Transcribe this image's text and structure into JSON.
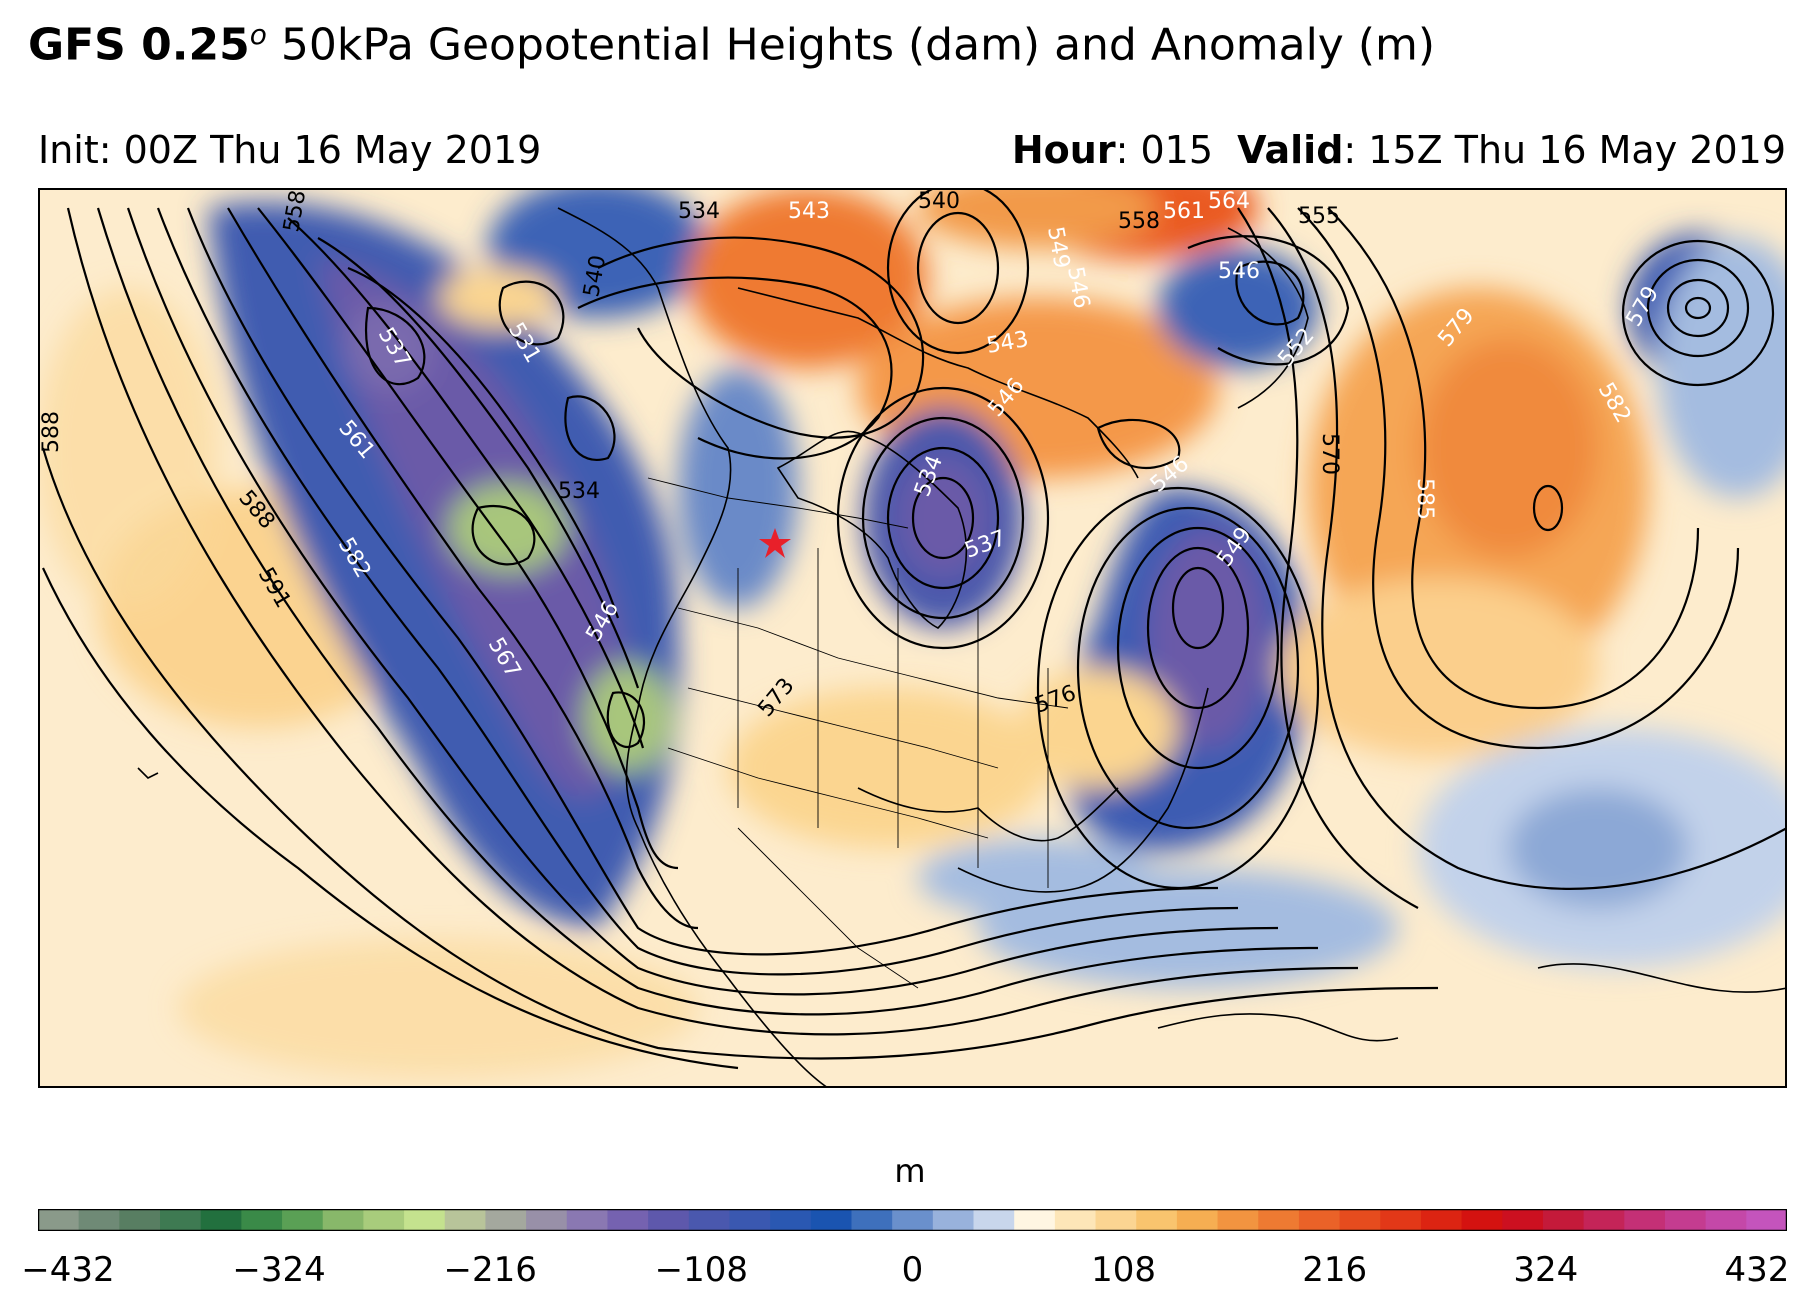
{
  "title": {
    "model": "GFS 0.25",
    "model_sup": "o",
    "rest": " 50kPa Geopotential Heights (dam) and Anomaly (m)"
  },
  "init": "Init: 00Z Thu 16 May 2019",
  "hour_label": "Hour",
  "hour_value": ": 015",
  "valid_label": "Valid",
  "valid_value": ": 15Z Thu 16 May 2019",
  "colorbar": {
    "unit": "m",
    "ticks": [
      "−432",
      "−324",
      "−216",
      "−108",
      "0",
      "108",
      "216",
      "324",
      "432"
    ],
    "colors": [
      "#8a9a8a",
      "#6f8a76",
      "#587e62",
      "#3e7a52",
      "#22703e",
      "#3a8a48",
      "#5aa055",
      "#88b86a",
      "#a8cc7c",
      "#c4e28e",
      "#b8c49a",
      "#a4a89e",
      "#9890a8",
      "#8a78b2",
      "#7562b0",
      "#5e58ac",
      "#4a58ae",
      "#3a58b0",
      "#2a58b2",
      "#1a54b0",
      "#3e70bc",
      "#6a90cc",
      "#98b2dc",
      "#c8d6ec",
      "#fff6e2",
      "#fde6b8",
      "#fbd592",
      "#f9c46e",
      "#f6ae52",
      "#f29440",
      "#ee7a32",
      "#ea6228",
      "#e64c1e",
      "#e23818",
      "#dc2412",
      "#d41210",
      "#cc1020",
      "#c41a3a",
      "#c42458",
      "#c43076",
      "#c43c90",
      "#c448a8",
      "#c454bc"
    ]
  },
  "contour_labels": [
    "558",
    "534",
    "543",
    "540",
    "549",
    "558",
    "561",
    "564",
    "555",
    "546",
    "552",
    "546",
    "579",
    "579",
    "582",
    "531",
    "537",
    "540",
    "534",
    "561",
    "588",
    "588",
    "591",
    "582",
    "567",
    "546",
    "573",
    "576",
    "570",
    "585",
    "549",
    "546",
    "534",
    "537",
    "546",
    "543"
  ],
  "marker": {
    "type": "star",
    "color": "#e8202a"
  }
}
